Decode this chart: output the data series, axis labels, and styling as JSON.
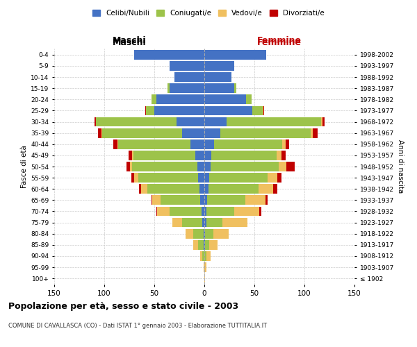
{
  "age_groups": [
    "100+",
    "95-99",
    "90-94",
    "85-89",
    "80-84",
    "75-79",
    "70-74",
    "65-69",
    "60-64",
    "55-59",
    "50-54",
    "45-49",
    "40-44",
    "35-39",
    "30-34",
    "25-29",
    "20-24",
    "15-19",
    "10-14",
    "5-9",
    "0-4"
  ],
  "birth_years": [
    "≤ 1902",
    "1903-1907",
    "1908-1912",
    "1913-1917",
    "1918-1922",
    "1923-1927",
    "1928-1932",
    "1933-1937",
    "1938-1942",
    "1943-1947",
    "1948-1952",
    "1953-1957",
    "1958-1962",
    "1963-1967",
    "1968-1972",
    "1973-1977",
    "1978-1982",
    "1983-1987",
    "1988-1992",
    "1993-1997",
    "1998-2002"
  ],
  "male": {
    "celibe": [
      0,
      0,
      0,
      1,
      1,
      2,
      3,
      4,
      5,
      6,
      7,
      9,
      14,
      22,
      28,
      50,
      48,
      35,
      30,
      35,
      70
    ],
    "coniugato": [
      0,
      0,
      2,
      5,
      10,
      20,
      32,
      40,
      52,
      60,
      65,
      62,
      72,
      80,
      80,
      8,
      5,
      2,
      0,
      0,
      0
    ],
    "vedovo": [
      0,
      1,
      2,
      5,
      8,
      10,
      12,
      8,
      6,
      4,
      2,
      1,
      1,
      1,
      0,
      0,
      0,
      0,
      0,
      0,
      0
    ],
    "divorziato": [
      0,
      0,
      0,
      0,
      0,
      0,
      1,
      1,
      2,
      3,
      4,
      4,
      4,
      3,
      2,
      1,
      0,
      0,
      0,
      0,
      0
    ]
  },
  "female": {
    "nubile": [
      0,
      0,
      0,
      1,
      1,
      2,
      2,
      3,
      4,
      5,
      6,
      7,
      10,
      16,
      22,
      48,
      42,
      30,
      27,
      30,
      62
    ],
    "coniugata": [
      0,
      0,
      2,
      4,
      8,
      16,
      28,
      38,
      50,
      58,
      68,
      65,
      68,
      90,
      95,
      10,
      5,
      2,
      0,
      0,
      0
    ],
    "vedova": [
      1,
      2,
      4,
      8,
      15,
      25,
      25,
      20,
      15,
      10,
      8,
      5,
      3,
      2,
      1,
      1,
      0,
      0,
      0,
      0,
      0
    ],
    "divorziata": [
      0,
      0,
      0,
      0,
      0,
      0,
      2,
      2,
      4,
      4,
      8,
      4,
      4,
      5,
      2,
      1,
      0,
      0,
      0,
      0,
      0
    ]
  },
  "colors": {
    "celibe": "#4472C4",
    "coniugato": "#9DC34A",
    "vedovo": "#F0C060",
    "divorziato": "#C00000"
  },
  "xlim": 150,
  "title": "Popolazione per età, sesso e stato civile - 2003",
  "subtitle": "COMUNE DI CAVALLASCA (CO) - Dati ISTAT 1° gennaio 2003 - Elaborazione TUTTITALIA.IT",
  "ylabel_left": "Fasce di età",
  "ylabel_right": "Anni di nascita",
  "header_left": "Maschi",
  "header_right": "Femmine",
  "legend_labels": [
    "Celibi/Nubili",
    "Coniugati/e",
    "Vedovi/e",
    "Divorziati/e"
  ]
}
